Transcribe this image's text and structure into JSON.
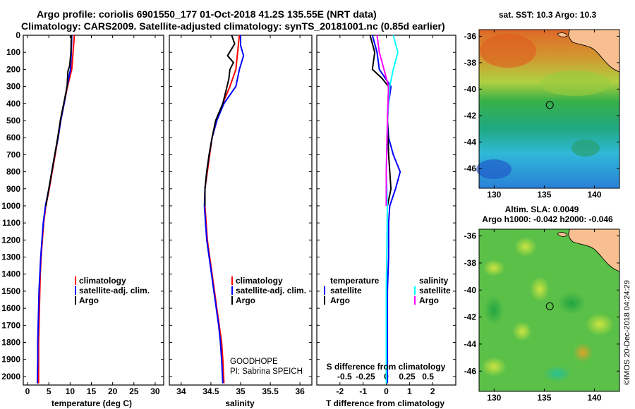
{
  "title_line1": "Argo profile: coriolis 6901550_177 01-Oct-2018 41.2S 135.55E (NRT data)",
  "title_line2": "Climatology: CARS2009. Satellite-adjusted climatology: synTS_20181001.nc (0.85d earlier)",
  "sst_title": "sat. SST: 10.3 Argo: 10.3",
  "sla_title1": "Altim. SLA: 0.0049",
  "sla_title2": "Argo h1000: -0.042 h2000: -0.046",
  "side_credit": "©IMOS 20-Dec-2018 04:24:29",
  "goodhope": "GOODHOPE",
  "pi": "PI: Sabrina SPEICH",
  "colors": {
    "climatology": "#ff0000",
    "satellite": "#0000ff",
    "argo": "#000000",
    "sal_satellite": "#00ffff",
    "sal_argo": "#ff00ff",
    "land": "#f8c090"
  },
  "chart_data": [
    {
      "type": "line",
      "name": "temperature",
      "xlabel": "temperature (deg C)",
      "xlim": [
        -1,
        32
      ],
      "ylim": [
        0,
        2050
      ],
      "xticks": [
        "0",
        "5",
        "10",
        "15",
        "20",
        "25",
        "30"
      ],
      "xtick_values": [
        0,
        5,
        10,
        15,
        20,
        25,
        30
      ],
      "yticks": [
        "0",
        "100",
        "200",
        "300",
        "400",
        "500",
        "600",
        "700",
        "800",
        "900",
        "1000",
        "1100",
        "1200",
        "1300",
        "1400",
        "1500",
        "1600",
        "1700",
        "1800",
        "1900",
        "2000"
      ],
      "legend": [
        "climatology",
        "satellite-adj. clim.",
        "Argo"
      ],
      "series": [
        {
          "name": "climatology",
          "color": "#ff0000",
          "points": [
            [
              11,
              0
            ],
            [
              10.7,
              100
            ],
            [
              10.4,
              200
            ],
            [
              9.4,
              300
            ],
            [
              8.6,
              400
            ],
            [
              7.8,
              500
            ],
            [
              7.2,
              600
            ],
            [
              6.5,
              700
            ],
            [
              5.8,
              800
            ],
            [
              5.1,
              900
            ],
            [
              4.3,
              1000
            ],
            [
              3.8,
              1100
            ],
            [
              3.5,
              1200
            ],
            [
              3.2,
              1300
            ],
            [
              3.0,
              1400
            ],
            [
              2.9,
              1500
            ],
            [
              2.8,
              1600
            ],
            [
              2.7,
              1700
            ],
            [
              2.6,
              1800
            ],
            [
              2.6,
              1900
            ],
            [
              2.6,
              2040
            ]
          ]
        },
        {
          "name": "satellite-adj. clim.",
          "color": "#0000ff",
          "points": [
            [
              10.4,
              0
            ],
            [
              10.3,
              100
            ],
            [
              10.1,
              200
            ],
            [
              9.3,
              300
            ],
            [
              8.6,
              400
            ],
            [
              7.8,
              500
            ],
            [
              7.2,
              600
            ],
            [
              6.4,
              700
            ],
            [
              5.7,
              800
            ],
            [
              5.0,
              900
            ],
            [
              4.2,
              1000
            ],
            [
              3.7,
              1100
            ],
            [
              3.4,
              1200
            ],
            [
              3.1,
              1300
            ],
            [
              2.9,
              1400
            ],
            [
              2.7,
              1500
            ],
            [
              2.6,
              1600
            ],
            [
              2.5,
              1700
            ],
            [
              2.4,
              1800
            ],
            [
              2.4,
              1900
            ],
            [
              2.3,
              2040
            ]
          ]
        },
        {
          "name": "Argo",
          "color": "#000000",
          "points": [
            [
              10.3,
              0
            ],
            [
              10.2,
              100
            ],
            [
              9.9,
              180
            ],
            [
              9.5,
              210
            ],
            [
              9.3,
              300
            ],
            [
              8.5,
              400
            ],
            [
              7.7,
              500
            ],
            [
              7.1,
              600
            ],
            [
              6.4,
              700
            ],
            [
              5.7,
              800
            ],
            [
              5.0,
              900
            ],
            [
              4.3,
              1000
            ]
          ]
        }
      ]
    },
    {
      "type": "line",
      "name": "salinity",
      "xlabel": "salinity",
      "xlim": [
        33.8,
        36.2
      ],
      "ylim": [
        0,
        2050
      ],
      "xticks": [
        "34",
        "34.5",
        "35",
        "35.5",
        "36"
      ],
      "xtick_values": [
        34,
        34.5,
        35,
        35.5,
        36
      ],
      "legend": [
        "climatology",
        "satellite-adj. clim.",
        "Argo"
      ],
      "series": [
        {
          "name": "climatology",
          "color": "#ff0000",
          "points": [
            [
              34.98,
              0
            ],
            [
              34.95,
              100
            ],
            [
              34.92,
              200
            ],
            [
              34.82,
              300
            ],
            [
              34.7,
              400
            ],
            [
              34.6,
              500
            ],
            [
              34.52,
              600
            ],
            [
              34.48,
              700
            ],
            [
              34.44,
              800
            ],
            [
              34.4,
              900
            ],
            [
              34.4,
              1000
            ],
            [
              34.42,
              1100
            ],
            [
              34.44,
              1200
            ],
            [
              34.48,
              1300
            ],
            [
              34.52,
              1400
            ],
            [
              34.56,
              1500
            ],
            [
              34.6,
              1600
            ],
            [
              34.64,
              1700
            ],
            [
              34.68,
              1800
            ],
            [
              34.7,
              1900
            ],
            [
              34.72,
              2040
            ]
          ]
        },
        {
          "name": "satellite-adj. clim.",
          "color": "#0000ff",
          "points": [
            [
              35.0,
              0
            ],
            [
              35.0,
              60
            ],
            [
              35.05,
              120
            ],
            [
              34.98,
              200
            ],
            [
              34.92,
              300
            ],
            [
              34.72,
              400
            ],
            [
              34.6,
              500
            ],
            [
              34.52,
              600
            ],
            [
              34.47,
              700
            ],
            [
              34.43,
              800
            ],
            [
              34.4,
              900
            ],
            [
              34.39,
              1000
            ],
            [
              34.41,
              1100
            ],
            [
              34.43,
              1200
            ],
            [
              34.47,
              1300
            ],
            [
              34.51,
              1400
            ],
            [
              34.55,
              1500
            ],
            [
              34.59,
              1600
            ],
            [
              34.63,
              1700
            ],
            [
              34.66,
              1800
            ],
            [
              34.68,
              1900
            ],
            [
              34.7,
              2040
            ]
          ]
        },
        {
          "name": "Argo",
          "color": "#000000",
          "points": [
            [
              34.85,
              0
            ],
            [
              34.9,
              50
            ],
            [
              34.78,
              120
            ],
            [
              34.88,
              160
            ],
            [
              34.82,
              200
            ],
            [
              34.8,
              260
            ],
            [
              34.7,
              400
            ],
            [
              34.58,
              500
            ],
            [
              34.52,
              600
            ],
            [
              34.47,
              700
            ],
            [
              34.43,
              800
            ],
            [
              34.4,
              900
            ],
            [
              34.4,
              1000
            ]
          ]
        }
      ]
    },
    {
      "type": "line",
      "name": "difference",
      "xlabel": "T difference from climatology",
      "xlabel_top": "S difference from climatology",
      "xlim": [
        -3,
        3
      ],
      "ylim": [
        0,
        2050
      ],
      "xticks": [
        "-2",
        "-1",
        "0",
        "1",
        "2"
      ],
      "xtick_values": [
        -2,
        -1,
        0,
        1,
        2
      ],
      "top_ticks": [
        "-0.5",
        "-0.25",
        "0",
        "0.25",
        "0.5"
      ],
      "top_tick_values": [
        -1.8,
        -0.9,
        0,
        0.9,
        1.8
      ],
      "legend_temperature_title": "temperature",
      "legend_salinity_title": "salinity",
      "legend_temperature": [
        "satellite",
        "Argo"
      ],
      "legend_salinity": [
        "satellite",
        "Argo"
      ],
      "series": [
        {
          "name": "temperature satellite",
          "color": "#0000ff",
          "points": [
            [
              -0.6,
              0
            ],
            [
              -0.4,
              100
            ],
            [
              -0.3,
              200
            ],
            [
              0.2,
              300
            ],
            [
              0.1,
              400
            ],
            [
              0.05,
              500
            ],
            [
              0.1,
              600
            ],
            [
              0.3,
              700
            ],
            [
              0.6,
              800
            ],
            [
              0.4,
              900
            ],
            [
              0.15,
              1000
            ],
            [
              0.1,
              1100
            ],
            [
              0.1,
              1300
            ],
            [
              0.05,
              1500
            ],
            [
              0.05,
              2040
            ]
          ]
        },
        {
          "name": "temperature Argo",
          "color": "#000000",
          "points": [
            [
              -0.7,
              0
            ],
            [
              -0.5,
              100
            ],
            [
              -0.6,
              200
            ],
            [
              -0.2,
              250
            ],
            [
              0.1,
              300
            ],
            [
              0.05,
              500
            ],
            [
              0.1,
              700
            ],
            [
              0.2,
              900
            ],
            [
              0.05,
              1000
            ]
          ]
        },
        {
          "name": "salinity satellite",
          "color": "#00ffff",
          "points": [
            [
              0.3,
              0
            ],
            [
              0.5,
              100
            ],
            [
              0.3,
              200
            ],
            [
              0.15,
              300
            ],
            [
              0.05,
              500
            ],
            [
              0.0,
              800
            ],
            [
              0.05,
              1000
            ],
            [
              0.0,
              1500
            ],
            [
              0.0,
              2040
            ]
          ]
        },
        {
          "name": "salinity Argo",
          "color": "#ff00ff",
          "points": [
            [
              -0.4,
              0
            ],
            [
              -0.3,
              100
            ],
            [
              -0.1,
              200
            ],
            [
              0.1,
              300
            ],
            [
              0.05,
              500
            ],
            [
              0.0,
              800
            ],
            [
              0.0,
              1000
            ]
          ]
        }
      ]
    }
  ],
  "maps": {
    "lon_ticks": [
      "130",
      "135",
      "140"
    ],
    "lon_values": [
      130,
      135,
      140
    ],
    "lat_ticks": [
      "-36",
      "-38",
      "-40",
      "-42",
      "-44",
      "-46"
    ],
    "lat_values": [
      -36,
      -38,
      -40,
      -42,
      -44,
      -46
    ],
    "lon_range": [
      128.5,
      142.5
    ],
    "lat_range": [
      -35.5,
      -47.5
    ],
    "profile_location": [
      135.55,
      -41.2
    ]
  }
}
